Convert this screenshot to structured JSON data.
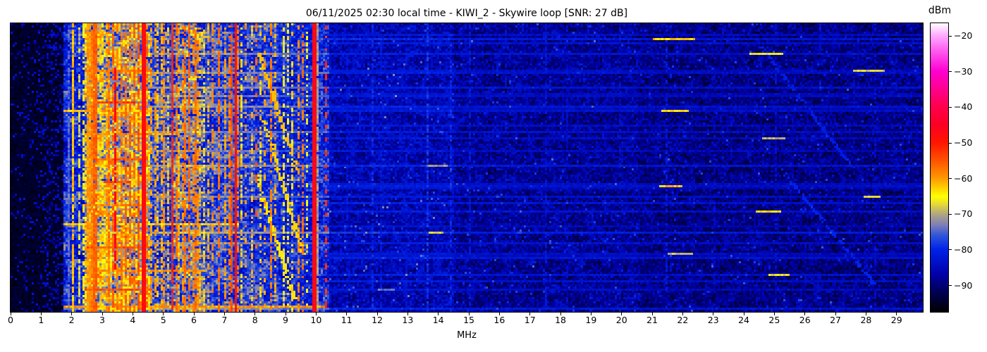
{
  "chart_data": {
    "type": "heatmap",
    "subtype": "hf-spectrum-waterfall",
    "title": "06/11/2025 02:30 local time - KIWI_2 - Skywire loop [SNR: 27 dB]",
    "xlabel": "MHz",
    "x_range_mhz": [
      0,
      29.86
    ],
    "x_ticks_mhz": [
      0,
      1,
      2,
      3,
      4,
      5,
      6,
      7,
      8,
      9,
      10,
      11,
      12,
      13,
      14,
      15,
      16,
      17,
      18,
      19,
      20,
      21,
      22,
      23,
      24,
      25,
      26,
      27,
      28,
      29
    ],
    "y_axis_note": "time axis, no tick labels shown",
    "colorbar": {
      "label": "dBm",
      "tick_values": [
        -20,
        -30,
        -40,
        -50,
        -60,
        -70,
        -80,
        -90
      ],
      "value_range_dbm": [
        -97.5,
        -16.5
      ],
      "colormap_stops": [
        [
          0.0,
          "#000000"
        ],
        [
          0.07,
          "#000055"
        ],
        [
          0.13,
          "#0000a8"
        ],
        [
          0.216,
          "#0022e8"
        ],
        [
          0.265,
          "#2f55d8"
        ],
        [
          0.3,
          "#7d7db8"
        ],
        [
          0.34,
          "#b2a87e"
        ],
        [
          0.375,
          "#e8dc32"
        ],
        [
          0.4,
          "#ffff00"
        ],
        [
          0.463,
          "#ff9800"
        ],
        [
          0.525,
          "#ff5200"
        ],
        [
          0.586,
          "#ff1500"
        ],
        [
          0.648,
          "#fb0023"
        ],
        [
          0.71,
          "#ff004c"
        ],
        [
          0.833,
          "#ff00d0"
        ],
        [
          0.9,
          "#ff55ee"
        ],
        [
          0.957,
          "#ffaaff"
        ],
        [
          1.0,
          "#ffffff"
        ]
      ]
    },
    "grid": {
      "cols": 432,
      "rows": 137,
      "seed": 20250611
    },
    "noise_floor_bands": [
      {
        "f0": 0.0,
        "f1": 1.72,
        "base": -95,
        "var": 3,
        "blotch": 0,
        "speckle": true
      },
      {
        "f0": 1.72,
        "f1": 2.45,
        "base": -80,
        "var": 5,
        "blotch": 8
      },
      {
        "f0": 2.45,
        "f1": 4.55,
        "base": -70,
        "var": 6,
        "blotch": 14,
        "hot": true
      },
      {
        "f0": 4.55,
        "f1": 5.35,
        "base": -77,
        "var": 5,
        "blotch": 7
      },
      {
        "f0": 5.35,
        "f1": 6.35,
        "base": -75,
        "var": 6,
        "blotch": 10
      },
      {
        "f0": 6.35,
        "f1": 7.45,
        "base": -77,
        "var": 5,
        "blotch": 7
      },
      {
        "f0": 7.45,
        "f1": 8.75,
        "base": -78,
        "var": 5,
        "blotch": 7
      },
      {
        "f0": 8.75,
        "f1": 10.45,
        "base": -80,
        "var": 5,
        "blotch": 6
      },
      {
        "f0": 10.45,
        "f1": 14.5,
        "base": -86,
        "var": 4,
        "blotch": 3
      },
      {
        "f0": 14.5,
        "f1": 20.5,
        "base": -88,
        "var": 4,
        "blotch": 3
      },
      {
        "f0": 20.5,
        "f1": 29.86,
        "base": -89,
        "var": 4,
        "blotch": 3
      }
    ],
    "carriers": [
      {
        "f": 1.85,
        "db": -75,
        "duty": 0.85
      },
      {
        "f": 2.02,
        "db": -62,
        "duty": 0.9
      },
      {
        "f": 2.18,
        "db": -68,
        "duty": 0.6
      },
      {
        "f": 2.33,
        "db": -65,
        "duty": 0.55
      },
      {
        "f": 2.5,
        "db": -60,
        "w": 2,
        "duty": 0.9
      },
      {
        "f": 2.6,
        "db": -58,
        "w": 2,
        "duty": 0.9
      },
      {
        "f": 2.73,
        "db": -56,
        "w": 2,
        "duty": 0.95
      },
      {
        "f": 2.87,
        "db": -62,
        "duty": 0.6
      },
      {
        "f": 3.0,
        "db": -63,
        "duty": 0.6
      },
      {
        "f": 3.12,
        "db": -60,
        "duty": 0.6
      },
      {
        "f": 3.2,
        "db": -57,
        "duty": 0.75
      },
      {
        "f": 3.3,
        "db": -56,
        "duty": 0.7
      },
      {
        "f": 3.37,
        "db": -46,
        "duty": 0.8,
        "r0": 0.15,
        "r1": 0.85
      },
      {
        "f": 3.48,
        "db": -59,
        "duty": 0.65
      },
      {
        "f": 3.6,
        "db": -57,
        "duty": 0.7
      },
      {
        "f": 3.74,
        "db": -56,
        "duty": 0.75
      },
      {
        "f": 3.88,
        "db": -56,
        "duty": 0.7
      },
      {
        "f": 4.0,
        "db": -57,
        "duty": 0.7
      },
      {
        "f": 4.13,
        "db": -55,
        "duty": 0.8
      },
      {
        "f": 4.28,
        "db": -48,
        "w": 2,
        "duty": 1
      },
      {
        "f": 4.42,
        "db": -57,
        "duty": 0.6
      },
      {
        "f": 4.55,
        "db": -60,
        "duty": 0.55
      },
      {
        "f": 4.68,
        "db": -60,
        "duty": 0.6
      },
      {
        "f": 4.8,
        "db": -62,
        "duty": 0.5
      },
      {
        "f": 4.93,
        "db": -61,
        "duty": 0.55
      },
      {
        "f": 5.0,
        "db": -59,
        "duty": 0.7
      },
      {
        "f": 5.1,
        "db": -62,
        "duty": 0.5
      },
      {
        "f": 5.28,
        "db": -52,
        "duty": 0.9
      },
      {
        "f": 5.36,
        "db": -57,
        "duty": 0.6
      },
      {
        "f": 5.47,
        "db": -61,
        "duty": 0.55
      },
      {
        "f": 5.57,
        "db": -59,
        "duty": 0.6
      },
      {
        "f": 5.68,
        "db": -57,
        "duty": 0.7
      },
      {
        "f": 5.8,
        "db": -56,
        "duty": 0.75
      },
      {
        "f": 5.92,
        "db": -59,
        "duty": 0.6
      },
      {
        "f": 6.0,
        "db": -57,
        "duty": 0.75
      },
      {
        "f": 6.08,
        "db": -59,
        "duty": 0.6
      },
      {
        "f": 6.17,
        "db": -61,
        "duty": 0.5
      },
      {
        "f": 6.3,
        "db": -63,
        "duty": 0.45
      },
      {
        "f": 6.45,
        "db": -61,
        "duty": 0.5
      },
      {
        "f": 6.6,
        "db": -59,
        "duty": 0.55
      },
      {
        "f": 6.8,
        "db": -57,
        "duty": 0.65
      },
      {
        "f": 6.95,
        "db": -60,
        "duty": 0.5
      },
      {
        "f": 7.1,
        "db": -58,
        "duty": 0.6
      },
      {
        "f": 7.2,
        "db": -55,
        "duty": 0.75
      },
      {
        "f": 7.3,
        "db": -49,
        "duty": 1
      },
      {
        "f": 7.4,
        "db": -58,
        "duty": 0.55
      },
      {
        "f": 7.55,
        "db": -63,
        "duty": 0.45
      },
      {
        "f": 7.7,
        "db": -60,
        "duty": 0.5,
        "dash": 3
      },
      {
        "f": 7.85,
        "db": -62,
        "duty": 0.45
      },
      {
        "f": 8.0,
        "db": -56,
        "duty": 0.55,
        "dash": 4
      },
      {
        "f": 8.13,
        "db": -63,
        "duty": 0.45
      },
      {
        "f": 8.3,
        "db": -60,
        "duty": 0.5,
        "dash": 3
      },
      {
        "f": 8.47,
        "db": -58,
        "duty": 0.55
      },
      {
        "f": 8.62,
        "db": -61,
        "duty": 0.45
      },
      {
        "f": 8.9,
        "db": -66,
        "duty": 0.45
      },
      {
        "f": 9.05,
        "db": -64,
        "duty": 0.45
      },
      {
        "f": 9.22,
        "db": -63,
        "duty": 0.5
      },
      {
        "f": 9.4,
        "db": -59,
        "duty": 0.55
      },
      {
        "f": 9.52,
        "db": -57,
        "duty": 0.55
      },
      {
        "f": 9.68,
        "db": -66,
        "duty": 0.4
      },
      {
        "f": 9.85,
        "db": -47,
        "w": 2,
        "duty": 1
      },
      {
        "f": 10.0,
        "db": -71,
        "duty": 0.9
      },
      {
        "f": 10.3,
        "db": -52,
        "duty": 0.85,
        "dash": 3
      },
      {
        "f": 11.0,
        "db": -83,
        "duty": 0.5
      },
      {
        "f": 11.8,
        "db": -80,
        "duty": 0.6
      },
      {
        "f": 12.1,
        "db": -82,
        "duty": 0.5
      },
      {
        "f": 12.95,
        "db": -83,
        "duty": 0.45
      },
      {
        "f": 13.6,
        "db": -79,
        "duty": 0.6
      },
      {
        "f": 14.4,
        "db": -80,
        "duty": 0.55
      },
      {
        "f": 15.0,
        "db": -82,
        "duty": 0.5
      },
      {
        "f": 16.2,
        "db": -84,
        "duty": 0.4
      },
      {
        "f": 17.5,
        "db": -83,
        "duty": 0.45
      },
      {
        "f": 18.2,
        "db": -84,
        "duty": 0.4
      },
      {
        "f": 19.9,
        "db": -84,
        "duty": 0.4
      },
      {
        "f": 21.45,
        "db": -82,
        "duty": 0.45
      },
      {
        "f": 23.0,
        "db": -85,
        "duty": 0.35
      },
      {
        "f": 25.0,
        "db": -84,
        "duty": 0.4
      },
      {
        "f": 26.5,
        "db": -85,
        "duty": 0.35
      },
      {
        "f": 28.25,
        "db": -84,
        "duty": 0.4
      }
    ],
    "bursts": [
      {
        "r": 0.16,
        "f0": 2.45,
        "f1": 4.6,
        "db": -58
      },
      {
        "r": 0.27,
        "f0": 2.85,
        "f1": 4.1,
        "db": -53
      },
      {
        "r": 0.3,
        "f0": 1.75,
        "f1": 4.6,
        "db": -62
      },
      {
        "r": 0.38,
        "f0": 2.45,
        "f1": 5.4,
        "db": -60
      },
      {
        "r": 0.47,
        "f0": 2.6,
        "f1": 4.5,
        "db": -56
      },
      {
        "r": 0.55,
        "f0": 3.05,
        "f1": 3.95,
        "db": -54
      },
      {
        "r": 0.63,
        "f0": 2.45,
        "f1": 4.6,
        "db": -59
      },
      {
        "r": 0.7,
        "f0": 1.75,
        "f1": 7.45,
        "db": -63
      },
      {
        "r": 0.78,
        "f0": 2.5,
        "f1": 4.55,
        "db": -55
      },
      {
        "r": 0.86,
        "f0": 2.45,
        "f1": 6.3,
        "db": -60
      },
      {
        "r": 0.93,
        "f0": 2.45,
        "f1": 4.6,
        "db": -56
      },
      {
        "r": 0.985,
        "f0": 1.75,
        "f1": 10.4,
        "db": -60
      }
    ],
    "streaks": [
      {
        "r": 0.055,
        "f0": 10.45,
        "boost": 6,
        "seg": [
          21.0,
          22.4
        ],
        "segdb": -63
      },
      {
        "r": 0.1,
        "f0": 4.6,
        "boost": 5,
        "seg": [
          24.2,
          25.3
        ],
        "segdb": -66
      },
      {
        "r": 0.16,
        "f0": 10.45,
        "boost": 4,
        "seg": [
          27.6,
          28.6
        ],
        "segdb": -68
      },
      {
        "r": 0.3,
        "f0": 10.45,
        "boost": 5,
        "seg": [
          21.3,
          22.2
        ],
        "segdb": -64
      },
      {
        "r": 0.4,
        "f0": 10.45,
        "boost": 4,
        "seg": [
          24.6,
          25.4
        ],
        "segdb": -70
      },
      {
        "r": 0.49,
        "f0": 4.6,
        "boost": 6,
        "seg": [
          13.6,
          14.3
        ],
        "segdb": -72
      },
      {
        "r": 0.565,
        "f0": 10.45,
        "boost": 5,
        "seg": [
          21.2,
          22.0
        ],
        "segdb": -62
      },
      {
        "r": 0.6,
        "f0": 10.45,
        "boost": 4,
        "seg": [
          27.9,
          28.5
        ],
        "segdb": -66
      },
      {
        "r": 0.655,
        "f0": 10.45,
        "boost": 5,
        "seg": [
          24.4,
          25.2
        ],
        "segdb": -64
      },
      {
        "r": 0.73,
        "f0": 4.6,
        "boost": 7,
        "seg": [
          13.7,
          14.2
        ],
        "segdb": -68
      },
      {
        "r": 0.8,
        "f0": 10.45,
        "boost": 4,
        "seg": [
          21.5,
          22.3
        ],
        "segdb": -69
      },
      {
        "r": 0.875,
        "f0": 10.45,
        "boost": 5,
        "seg": [
          24.8,
          25.5
        ],
        "segdb": -67
      },
      {
        "r": 0.93,
        "f0": 10.45,
        "boost": 4,
        "seg": [
          12.0,
          12.6
        ],
        "segdb": -74
      },
      {
        "r": 0.995,
        "f0": 1.75,
        "boost": 6
      }
    ],
    "random_streaks": {
      "count": 22,
      "boost_min": 2.5,
      "boost_max": 6
    },
    "diagonal_sweeps": [
      {
        "r0": 0.1,
        "r1": 0.52,
        "fa": 8.15,
        "fb": 9.45,
        "db": -62
      },
      {
        "r0": 0.33,
        "r1": 0.8,
        "fa": 8.3,
        "fb": 9.6,
        "db": -63
      },
      {
        "r0": 0.52,
        "r1": 0.95,
        "fa": 8.05,
        "fb": 9.3,
        "db": -64
      },
      {
        "r0": 0.08,
        "r1": 0.5,
        "fa": 24.6,
        "fb": 27.6,
        "db": -81
      },
      {
        "r0": 0.5,
        "r1": 0.9,
        "fa": 25.2,
        "fb": 28.3,
        "db": -80
      }
    ]
  }
}
